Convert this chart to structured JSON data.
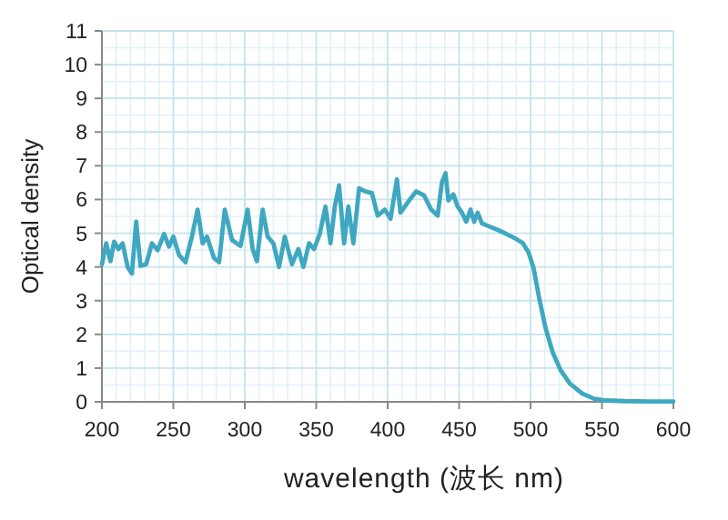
{
  "chart_data": {
    "type": "line",
    "xlabel": "wavelength (波长 nm)",
    "ylabel": "Optical density",
    "xlim": [
      200,
      600
    ],
    "ylim": [
      0,
      11
    ],
    "xticks": [
      200,
      250,
      300,
      350,
      400,
      450,
      500,
      550,
      600
    ],
    "yticks": [
      0,
      1,
      2,
      3,
      4,
      5,
      6,
      7,
      8,
      9,
      10,
      11
    ],
    "grid": true,
    "series": [
      {
        "color": "#3fa8c0",
        "x": [
          200,
          203,
          206,
          208.5,
          211.5,
          214.5,
          218,
          221,
          224,
          227,
          231,
          235,
          239,
          243.5,
          247,
          250,
          254,
          258.5,
          263,
          267,
          270.5,
          273.5,
          278.5,
          282,
          286,
          291,
          297,
          302,
          305.5,
          308.5,
          312.5,
          316,
          320,
          324,
          328,
          333,
          337.5,
          341,
          345,
          348.5,
          352.5,
          356.5,
          360,
          363,
          366,
          369.5,
          372.5,
          376,
          380,
          384.5,
          389,
          393,
          398,
          402,
          406.5,
          409,
          415,
          420,
          425.5,
          430.5,
          435,
          438,
          440.5,
          442.5,
          446,
          449,
          452,
          455,
          458,
          460.5,
          463,
          466,
          470,
          476.5,
          483,
          489.5,
          494.5,
          498.5,
          502,
          506,
          510.5,
          515.5,
          521,
          527.5,
          536,
          544.5,
          553,
          566,
          583,
          600
        ],
        "values": [
          4.08,
          4.7,
          4.17,
          4.75,
          4.53,
          4.7,
          4.0,
          3.8,
          5.34,
          4.03,
          4.08,
          4.7,
          4.5,
          4.98,
          4.6,
          4.9,
          4.35,
          4.14,
          4.9,
          5.7,
          4.7,
          4.9,
          4.26,
          4.14,
          5.7,
          4.8,
          4.62,
          5.7,
          4.53,
          4.17,
          5.7,
          4.9,
          4.7,
          4.0,
          4.9,
          4.08,
          4.53,
          4.0,
          4.7,
          4.53,
          4.98,
          5.79,
          4.7,
          5.79,
          6.42,
          4.7,
          5.79,
          4.7,
          6.33,
          6.24,
          6.19,
          5.52,
          5.7,
          5.43,
          6.6,
          5.61,
          5.97,
          6.24,
          6.12,
          5.7,
          5.52,
          6.51,
          6.78,
          5.97,
          6.15,
          5.79,
          5.61,
          5.34,
          5.7,
          5.34,
          5.61,
          5.29,
          5.22,
          5.11,
          4.98,
          4.84,
          4.71,
          4.44,
          3.99,
          3.09,
          2.19,
          1.47,
          0.94,
          0.54,
          0.25,
          0.09,
          0.04,
          0.02,
          0.01,
          0.01
        ]
      }
    ]
  }
}
